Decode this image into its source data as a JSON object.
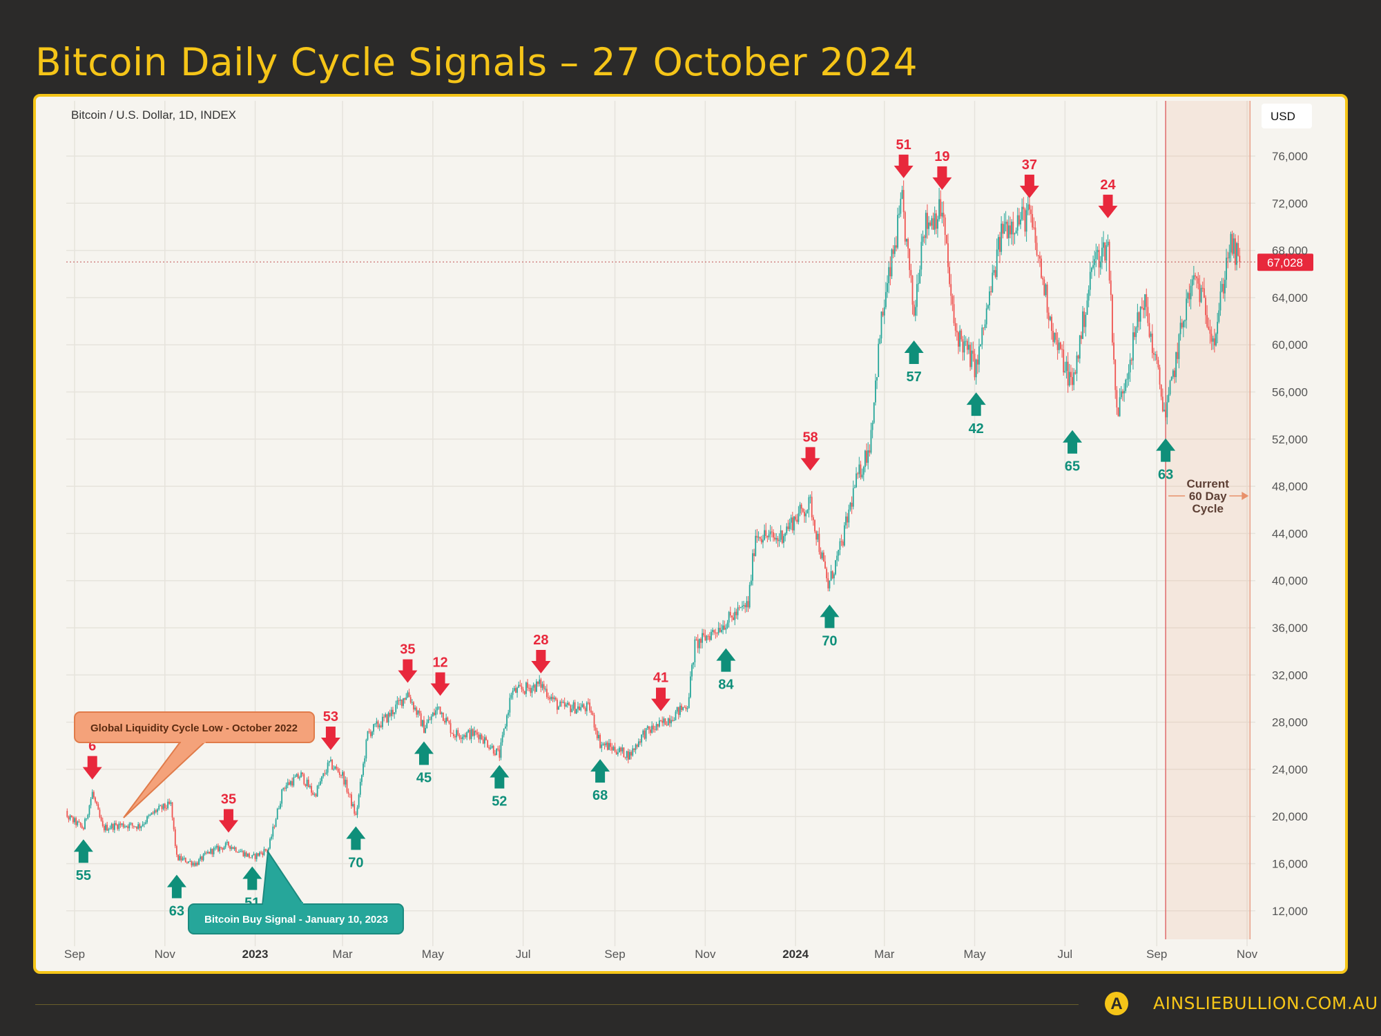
{
  "title": "Bitcoin Daily Cycle Signals – 27 October 2024",
  "footer": {
    "site": "AINSLIEBULLION.COM.AU",
    "logo_letter": "A"
  },
  "chart_data": {
    "type": "candlestick",
    "symbol_label": "Bitcoin / U.S. Dollar, 1D, INDEX",
    "currency": "USD",
    "last_price": 67028,
    "last_price_label": "67,028",
    "ylim": [
      10000,
      78000
    ],
    "y_ticks": [
      12000,
      16000,
      20000,
      24000,
      28000,
      32000,
      36000,
      40000,
      44000,
      48000,
      52000,
      56000,
      60000,
      64000,
      68000,
      72000,
      76000
    ],
    "x_ticks": [
      {
        "date": "2022-09-01",
        "label": "Sep",
        "bold": false
      },
      {
        "date": "2022-11-01",
        "label": "Nov",
        "bold": false
      },
      {
        "date": "2023-01-01",
        "label": "2023",
        "bold": true
      },
      {
        "date": "2023-03-01",
        "label": "Mar",
        "bold": false
      },
      {
        "date": "2023-05-01",
        "label": "May",
        "bold": false
      },
      {
        "date": "2023-07-01",
        "label": "Jul",
        "bold": false
      },
      {
        "date": "2023-09-01",
        "label": "Sep",
        "bold": false
      },
      {
        "date": "2023-11-01",
        "label": "Nov",
        "bold": false
      },
      {
        "date": "2024-01-01",
        "label": "2024",
        "bold": true
      },
      {
        "date": "2024-03-01",
        "label": "Mar",
        "bold": false
      },
      {
        "date": "2024-05-01",
        "label": "May",
        "bold": false
      },
      {
        "date": "2024-07-01",
        "label": "Jul",
        "bold": false
      },
      {
        "date": "2024-09-01",
        "label": "Sep",
        "bold": false
      },
      {
        "date": "2024-11-01",
        "label": "Nov",
        "bold": false
      }
    ],
    "grid": true,
    "colors": {
      "up": "#26a69a",
      "down": "#ef5350",
      "signal_up": "#0f8f7a",
      "signal_down": "#e8283c",
      "accent": "#f5c518"
    },
    "price_path": [
      [
        "2022-08-20",
        21500
      ],
      [
        "2022-08-27",
        20000
      ],
      [
        "2022-09-07",
        19000
      ],
      [
        "2022-09-13",
        22000
      ],
      [
        "2022-09-20",
        19000
      ],
      [
        "2022-10-01",
        19300
      ],
      [
        "2022-10-15",
        19200
      ],
      [
        "2022-10-26",
        20500
      ],
      [
        "2022-11-05",
        21000
      ],
      [
        "2022-11-09",
        16500
      ],
      [
        "2022-11-22",
        16000
      ],
      [
        "2022-12-01",
        17000
      ],
      [
        "2022-12-14",
        17600
      ],
      [
        "2022-12-30",
        16500
      ],
      [
        "2023-01-10",
        17300
      ],
      [
        "2023-01-20",
        22500
      ],
      [
        "2023-02-01",
        23500
      ],
      [
        "2023-02-10",
        21800
      ],
      [
        "2023-02-20",
        24500
      ],
      [
        "2023-03-01",
        23500
      ],
      [
        "2023-03-10",
        20000
      ],
      [
        "2023-03-18",
        27000
      ],
      [
        "2023-04-01",
        28500
      ],
      [
        "2023-04-14",
        30500
      ],
      [
        "2023-04-25",
        27500
      ],
      [
        "2023-05-05",
        29300
      ],
      [
        "2023-05-15",
        27000
      ],
      [
        "2023-06-01",
        27000
      ],
      [
        "2023-06-15",
        25200
      ],
      [
        "2023-06-23",
        30500
      ],
      [
        "2023-07-13",
        31200
      ],
      [
        "2023-07-25",
        29300
      ],
      [
        "2023-08-15",
        29200
      ],
      [
        "2023-08-22",
        26200
      ],
      [
        "2023-09-11",
        25200
      ],
      [
        "2023-09-20",
        27000
      ],
      [
        "2023-10-02",
        27800
      ],
      [
        "2023-10-20",
        29500
      ],
      [
        "2023-10-25",
        34500
      ],
      [
        "2023-11-15",
        36500
      ],
      [
        "2023-11-30",
        38000
      ],
      [
        "2023-12-05",
        44000
      ],
      [
        "2023-12-20",
        43500
      ],
      [
        "2024-01-02",
        45500
      ],
      [
        "2024-01-11",
        46500
      ],
      [
        "2024-01-23",
        39500
      ],
      [
        "2024-02-01",
        43000
      ],
      [
        "2024-02-10",
        48000
      ],
      [
        "2024-02-20",
        51500
      ],
      [
        "2024-02-28",
        62000
      ],
      [
        "2024-03-13",
        72000
      ],
      [
        "2024-03-21",
        62500
      ],
      [
        "2024-03-27",
        70000
      ],
      [
        "2024-04-09",
        71500
      ],
      [
        "2024-04-17",
        61500
      ],
      [
        "2024-05-02",
        58000
      ],
      [
        "2024-05-20",
        70000
      ],
      [
        "2024-06-07",
        71000
      ],
      [
        "2024-06-24",
        60500
      ],
      [
        "2024-07-06",
        56500
      ],
      [
        "2024-07-20",
        67000
      ],
      [
        "2024-07-30",
        68500
      ],
      [
        "2024-08-05",
        54000
      ],
      [
        "2024-08-23",
        64000
      ],
      [
        "2024-09-07",
        53900
      ],
      [
        "2024-09-20",
        63000
      ],
      [
        "2024-09-27",
        65800
      ],
      [
        "2024-10-10",
        60500
      ],
      [
        "2024-10-20",
        68500
      ],
      [
        "2024-10-27",
        67028
      ]
    ],
    "signals": [
      {
        "date": "2022-09-13",
        "label": "6",
        "price": 22900,
        "direction": "down"
      },
      {
        "date": "2022-12-14",
        "label": "35",
        "price": 18400,
        "direction": "down"
      },
      {
        "date": "2023-02-21",
        "label": "53",
        "price": 25400,
        "direction": "down"
      },
      {
        "date": "2023-04-14",
        "label": "35",
        "price": 31100,
        "direction": "down"
      },
      {
        "date": "2023-05-06",
        "label": "12",
        "price": 30000,
        "direction": "down"
      },
      {
        "date": "2023-07-13",
        "label": "28",
        "price": 31900,
        "direction": "down"
      },
      {
        "date": "2023-10-02",
        "label": "41",
        "price": 28700,
        "direction": "down"
      },
      {
        "date": "2024-01-11",
        "label": "58",
        "price": 49100,
        "direction": "down"
      },
      {
        "date": "2024-03-14",
        "label": "51",
        "price": 73900,
        "direction": "down"
      },
      {
        "date": "2024-04-09",
        "label": "19",
        "price": 72900,
        "direction": "down"
      },
      {
        "date": "2024-06-07",
        "label": "37",
        "price": 72200,
        "direction": "down"
      },
      {
        "date": "2024-07-30",
        "label": "24",
        "price": 70500,
        "direction": "down"
      },
      {
        "date": "2022-09-07",
        "label": "55",
        "price": 18300,
        "direction": "up"
      },
      {
        "date": "2022-11-09",
        "label": "63",
        "price": 15300,
        "direction": "up"
      },
      {
        "date": "2022-12-30",
        "label": "51",
        "price": 16000,
        "direction": "up"
      },
      {
        "date": "2023-03-10",
        "label": "70",
        "price": 19400,
        "direction": "up"
      },
      {
        "date": "2023-04-25",
        "label": "45",
        "price": 26600,
        "direction": "up"
      },
      {
        "date": "2023-06-15",
        "label": "52",
        "price": 24600,
        "direction": "up"
      },
      {
        "date": "2023-08-22",
        "label": "68",
        "price": 25100,
        "direction": "up"
      },
      {
        "date": "2023-11-15",
        "label": "84",
        "price": 34500,
        "direction": "up"
      },
      {
        "date": "2024-01-24",
        "label": "70",
        "price": 38200,
        "direction": "up"
      },
      {
        "date": "2024-03-21",
        "label": "57",
        "price": 60600,
        "direction": "up"
      },
      {
        "date": "2024-05-02",
        "label": "42",
        "price": 56200,
        "direction": "up"
      },
      {
        "date": "2024-07-06",
        "label": "65",
        "price": 53000,
        "direction": "up"
      },
      {
        "date": "2024-09-07",
        "label": "63",
        "price": 52300,
        "direction": "up"
      }
    ],
    "current_cycle": {
      "start": "2024-09-07",
      "end": "2024-11-03",
      "label_lines": [
        "Current",
        "60 Day",
        "Cycle"
      ]
    },
    "annotations": {
      "liquidity_low": "Global Liquidity Cycle Low - October 2022",
      "buy_signal": "Bitcoin Buy Signal - January 10, 2023"
    }
  }
}
